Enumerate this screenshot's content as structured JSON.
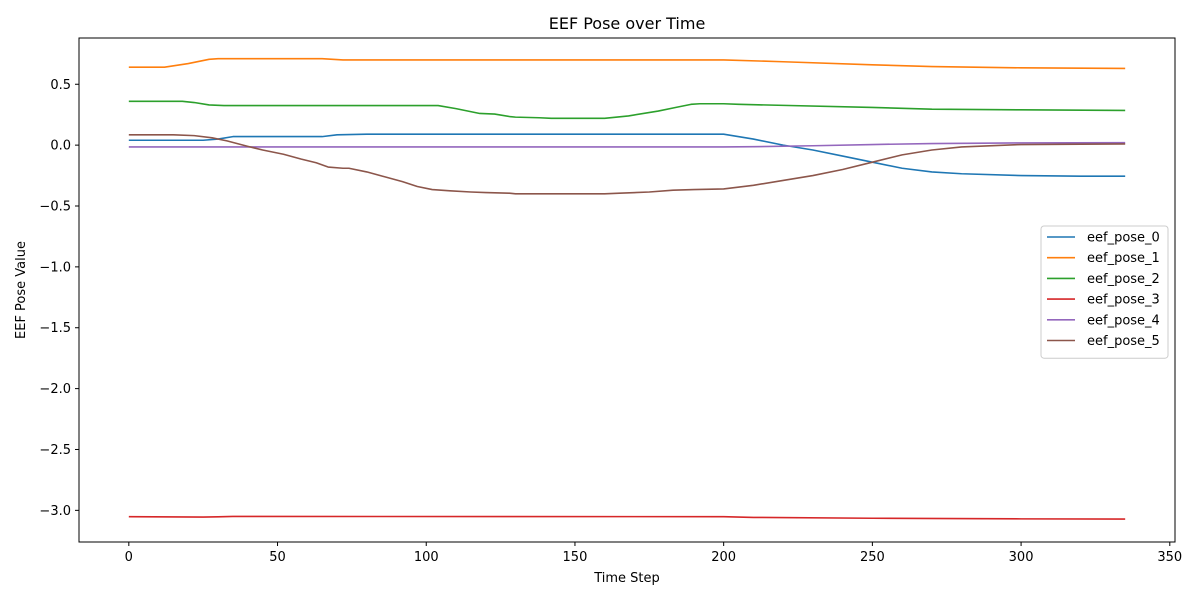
{
  "chart_data": {
    "type": "line",
    "title": "EEF Pose over Time",
    "xlabel": "Time Step",
    "ylabel": "EEF Pose Value",
    "xlim": [
      -16.75,
      351.75
    ],
    "ylim": [
      -3.26,
      0.88
    ],
    "xticks": [
      0,
      50,
      100,
      150,
      200,
      250,
      300,
      350
    ],
    "yticks": [
      0.5,
      0.0,
      -0.5,
      -1.0,
      -1.5,
      -2.0,
      -2.5,
      -3.0
    ],
    "ytick_labels": [
      "0.5",
      "0.0",
      "−0.5",
      "−1.0",
      "−1.5",
      "−2.0",
      "−2.5",
      "−3.0"
    ],
    "grid": false,
    "legend_position": "center-right",
    "series": [
      {
        "name": "eef_pose_0",
        "color": "#1f77b4",
        "points": [
          [
            0,
            0.04
          ],
          [
            25,
            0.04
          ],
          [
            30,
            0.05
          ],
          [
            35,
            0.07
          ],
          [
            65,
            0.07
          ],
          [
            70,
            0.085
          ],
          [
            80,
            0.09
          ],
          [
            200,
            0.09
          ],
          [
            210,
            0.05
          ],
          [
            220,
            0.0
          ],
          [
            230,
            -0.04
          ],
          [
            240,
            -0.09
          ],
          [
            250,
            -0.14
          ],
          [
            260,
            -0.19
          ],
          [
            270,
            -0.22
          ],
          [
            280,
            -0.235
          ],
          [
            300,
            -0.25
          ],
          [
            320,
            -0.255
          ],
          [
            335,
            -0.255
          ]
        ]
      },
      {
        "name": "eef_pose_1",
        "color": "#ff7f0e",
        "points": [
          [
            0,
            0.64
          ],
          [
            12,
            0.64
          ],
          [
            20,
            0.67
          ],
          [
            27,
            0.705
          ],
          [
            30,
            0.71
          ],
          [
            65,
            0.71
          ],
          [
            72,
            0.7
          ],
          [
            200,
            0.7
          ],
          [
            220,
            0.685
          ],
          [
            250,
            0.66
          ],
          [
            270,
            0.645
          ],
          [
            300,
            0.635
          ],
          [
            335,
            0.63
          ]
        ]
      },
      {
        "name": "eef_pose_2",
        "color": "#2ca02c",
        "points": [
          [
            0,
            0.36
          ],
          [
            18,
            0.36
          ],
          [
            22,
            0.35
          ],
          [
            27,
            0.33
          ],
          [
            32,
            0.325
          ],
          [
            100,
            0.325
          ],
          [
            104,
            0.325
          ],
          [
            110,
            0.3
          ],
          [
            118,
            0.26
          ],
          [
            123,
            0.255
          ],
          [
            128,
            0.235
          ],
          [
            130,
            0.23
          ],
          [
            138,
            0.225
          ],
          [
            142,
            0.22
          ],
          [
            160,
            0.22
          ],
          [
            168,
            0.24
          ],
          [
            178,
            0.28
          ],
          [
            184,
            0.31
          ],
          [
            189,
            0.335
          ],
          [
            192,
            0.34
          ],
          [
            200,
            0.34
          ],
          [
            205,
            0.335
          ],
          [
            250,
            0.31
          ],
          [
            270,
            0.295
          ],
          [
            300,
            0.29
          ],
          [
            335,
            0.285
          ]
        ]
      },
      {
        "name": "eef_pose_3",
        "color": "#d62728",
        "points": [
          [
            0,
            -3.052
          ],
          [
            25,
            -3.055
          ],
          [
            30,
            -3.053
          ],
          [
            35,
            -3.05
          ],
          [
            200,
            -3.052
          ],
          [
            210,
            -3.058
          ],
          [
            250,
            -3.065
          ],
          [
            300,
            -3.07
          ],
          [
            335,
            -3.072
          ]
        ]
      },
      {
        "name": "eef_pose_4",
        "color": "#9467bd",
        "points": [
          [
            0,
            -0.015
          ],
          [
            200,
            -0.015
          ],
          [
            210,
            -0.013
          ],
          [
            230,
            -0.005
          ],
          [
            250,
            0.005
          ],
          [
            270,
            0.013
          ],
          [
            300,
            0.018
          ],
          [
            335,
            0.02
          ]
        ]
      },
      {
        "name": "eef_pose_5",
        "color": "#8c564b",
        "points": [
          [
            0,
            0.085
          ],
          [
            15,
            0.085
          ],
          [
            22,
            0.078
          ],
          [
            28,
            0.06
          ],
          [
            33,
            0.035
          ],
          [
            40,
            -0.01
          ],
          [
            45,
            -0.04
          ],
          [
            52,
            -0.075
          ],
          [
            58,
            -0.115
          ],
          [
            63,
            -0.145
          ],
          [
            67,
            -0.18
          ],
          [
            72,
            -0.19
          ],
          [
            74,
            -0.19
          ],
          [
            80,
            -0.22
          ],
          [
            86,
            -0.26
          ],
          [
            92,
            -0.3
          ],
          [
            97,
            -0.34
          ],
          [
            102,
            -0.365
          ],
          [
            108,
            -0.375
          ],
          [
            115,
            -0.385
          ],
          [
            120,
            -0.39
          ],
          [
            128,
            -0.395
          ],
          [
            130,
            -0.4
          ],
          [
            160,
            -0.4
          ],
          [
            165,
            -0.395
          ],
          [
            175,
            -0.385
          ],
          [
            183,
            -0.37
          ],
          [
            190,
            -0.365
          ],
          [
            200,
            -0.36
          ],
          [
            210,
            -0.33
          ],
          [
            220,
            -0.29
          ],
          [
            230,
            -0.25
          ],
          [
            240,
            -0.2
          ],
          [
            250,
            -0.14
          ],
          [
            260,
            -0.08
          ],
          [
            270,
            -0.04
          ],
          [
            280,
            -0.015
          ],
          [
            300,
            0.005
          ],
          [
            320,
            0.008
          ],
          [
            335,
            0.01
          ]
        ]
      }
    ]
  }
}
